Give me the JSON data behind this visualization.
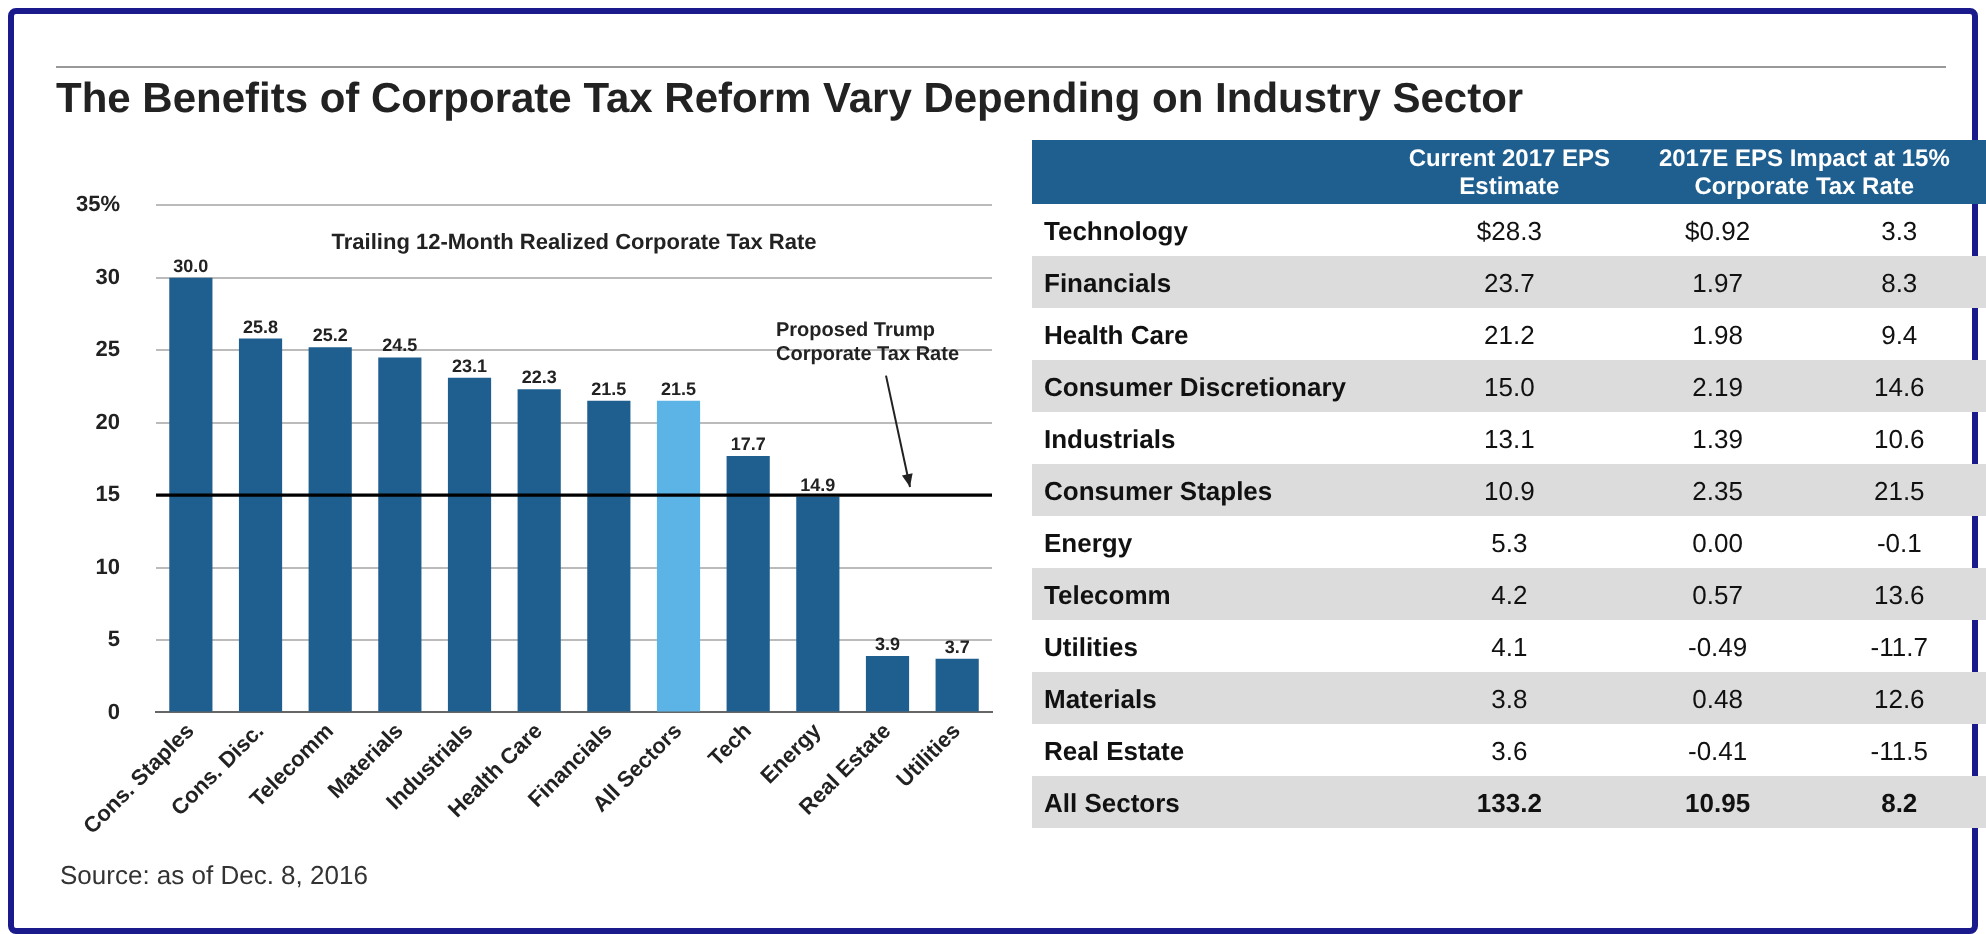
{
  "chart_data": [
    {
      "type": "bar",
      "title": "The Benefits of Corporate Tax Reform Vary Depending on Industry Sector",
      "subtitle": "Trailing 12-Month Realized Corporate Tax Rate",
      "categories": [
        "Cons. Staples",
        "Cons. Disc.",
        "Telecomm",
        "Materials",
        "Industrials",
        "Health Care",
        "Financials",
        "All Sectors",
        "Tech",
        "Energy",
        "Real Estate",
        "Utilities"
      ],
      "values": [
        30.0,
        25.8,
        25.2,
        24.5,
        23.1,
        22.3,
        21.5,
        21.5,
        17.7,
        14.9,
        3.9,
        3.7
      ],
      "value_labels": [
        "30.0",
        "25.8",
        "25.2",
        "24.5",
        "23.1",
        "22.3",
        "21.5",
        "21.5",
        "17.7",
        "14.9",
        "3.9",
        "3.7"
      ],
      "colors": [
        "#1f5f8f",
        "#1f5f8f",
        "#1f5f8f",
        "#1f5f8f",
        "#1f5f8f",
        "#1f5f8f",
        "#1f5f8f",
        "#5cb3e6",
        "#1f5f8f",
        "#1f5f8f",
        "#1f5f8f",
        "#1f5f8f"
      ],
      "ylim": [
        0,
        35
      ],
      "yticks": [
        0,
        5,
        10,
        15,
        20,
        25,
        30,
        {
          "value": 35,
          "label": "35%"
        }
      ],
      "grid": "y",
      "ref_lines": [
        {
          "axis": "y",
          "value": 15,
          "label": "Proposed Trump Corporate Tax Rate",
          "color": "#000000"
        }
      ],
      "annotations": [
        "Source: as of Dec. 8, 2016"
      ]
    },
    {
      "type": "other",
      "categories": [
        "Technology",
        "Financials",
        "Health Care",
        "Consumer Discretionary",
        "Industrials",
        "Consumer Staples",
        "Energy",
        "Telecomm",
        "Utilities",
        "Materials",
        "Real Estate",
        "All Sectors"
      ],
      "series": [
        {
          "name": "Current 2017 EPS Estimate",
          "values": [
            28.3,
            23.7,
            21.2,
            15.0,
            13.1,
            10.9,
            5.3,
            4.2,
            4.1,
            3.8,
            3.6,
            133.2
          ],
          "value_labels": [
            "$28.3",
            "23.7",
            "21.2",
            "15.0",
            "13.1",
            "10.9",
            "5.3",
            "4.2",
            "4.1",
            "3.8",
            "3.6",
            "133.2"
          ]
        },
        {
          "name": "2017E EPS Impact at 15% Corporate Tax Rate",
          "values": [
            0.92,
            1.97,
            1.98,
            2.19,
            1.39,
            2.35,
            0.0,
            0.57,
            -0.49,
            0.48,
            -0.41,
            10.95
          ],
          "value_labels": [
            "$0.92",
            "1.97",
            "1.98",
            "2.19",
            "1.39",
            "2.35",
            "0.00",
            "0.57",
            "-0.49",
            "0.48",
            "-0.41",
            "10.95"
          ]
        },
        {
          "name": null,
          "values": [
            3.3,
            8.3,
            9.4,
            14.6,
            10.6,
            21.5,
            -0.1,
            13.6,
            -11.7,
            12.6,
            -11.5,
            8.2
          ]
        }
      ],
      "data_labels": true
    }
  ]
}
